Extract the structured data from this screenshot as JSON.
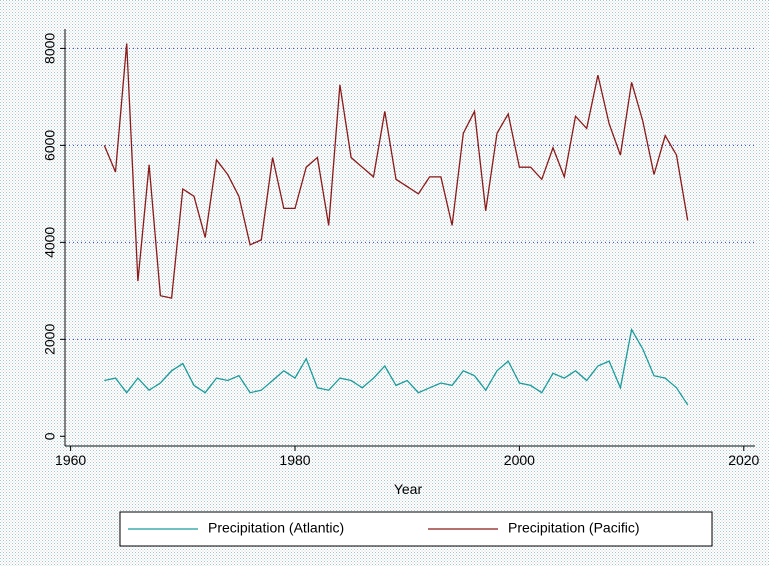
{
  "chart_data": {
    "type": "line",
    "x": [
      1963,
      1964,
      1965,
      1966,
      1967,
      1968,
      1969,
      1970,
      1971,
      1972,
      1973,
      1974,
      1975,
      1976,
      1977,
      1978,
      1979,
      1980,
      1981,
      1982,
      1983,
      1984,
      1985,
      1986,
      1987,
      1988,
      1989,
      1990,
      1991,
      1992,
      1993,
      1994,
      1995,
      1996,
      1997,
      1998,
      1999,
      2000,
      2001,
      2002,
      2003,
      2004,
      2005,
      2006,
      2007,
      2008,
      2009,
      2010,
      2011,
      2012,
      2013,
      2014,
      2015
    ],
    "series": [
      {
        "name": "Precipitation (Atlantic)",
        "color": "#1a9c9c",
        "values": [
          1150,
          1200,
          900,
          1200,
          950,
          1100,
          1350,
          1500,
          1050,
          900,
          1200,
          1150,
          1250,
          900,
          950,
          1150,
          1350,
          1200,
          1600,
          1000,
          950,
          1200,
          1150,
          1000,
          1200,
          1450,
          1050,
          1150,
          900,
          1000,
          1100,
          1050,
          1350,
          1250,
          950,
          1350,
          1550,
          1100,
          1050,
          900,
          1300,
          1200,
          1350,
          1150,
          1450,
          1550,
          1000,
          2200,
          1800,
          1250,
          1200,
          1000,
          650
        ]
      },
      {
        "name": "Precipitation (Pacific)",
        "color": "#8b1a1a",
        "values": [
          6000,
          5450,
          8100,
          3200,
          5600,
          2900,
          2850,
          5100,
          4950,
          4100,
          5700,
          5400,
          4950,
          3950,
          4050,
          5750,
          4700,
          4700,
          5550,
          5750,
          4350,
          7250,
          5750,
          5550,
          5350,
          6700,
          5300,
          5150,
          5000,
          5350,
          5350,
          4350,
          6250,
          6700,
          4650,
          6250,
          6650,
          5550,
          5550,
          5300,
          5950,
          5350,
          6600,
          6350,
          7450,
          6450,
          5800,
          7300,
          6500,
          5400,
          6200,
          5800,
          4450
        ]
      }
    ],
    "x_label": "Year",
    "xlim": [
      1959.5,
      2021
    ],
    "xticks": [
      1960,
      1980,
      2000,
      2020
    ],
    "ylim": [
      -200,
      8400
    ],
    "yticks": [
      0,
      2000,
      4000,
      6000,
      8000
    ],
    "grid": true,
    "legend": "bottom"
  }
}
